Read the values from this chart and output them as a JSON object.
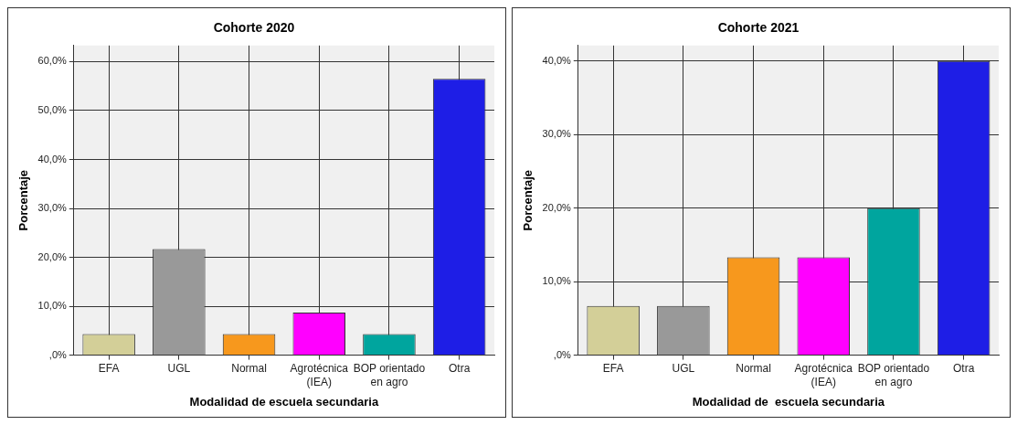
{
  "chart_data": [
    {
      "type": "bar",
      "title": "Cohorte 2020",
      "xlabel": "Modalidad de escuela secundaria",
      "ylabel": "Porcentaje",
      "categories": [
        "EFA",
        "UGL",
        "Normal",
        "Agrotécnica (IEA)",
        "BOP orientado en agro",
        "Otra"
      ],
      "values": [
        4.3,
        21.7,
        4.3,
        8.7,
        4.3,
        56.5
      ],
      "colors": [
        "#d3cf98",
        "#999999",
        "#f7981d",
        "#ff00ff",
        "#00a59e",
        "#1e1ee6"
      ],
      "ylim": [
        0,
        63.3
      ],
      "yticks": [
        {
          "value": 0,
          "label": ",0%"
        },
        {
          "value": 10,
          "label": "10,0%"
        },
        {
          "value": 20,
          "label": "20,0%"
        },
        {
          "value": 30,
          "label": "30,0%"
        },
        {
          "value": 40,
          "label": "40,0%"
        },
        {
          "value": 50,
          "label": "50,0%"
        },
        {
          "value": 60,
          "label": "60,0%"
        }
      ],
      "grid": true
    },
    {
      "type": "bar",
      "title": "Cohorte 2021",
      "xlabel": "Modalidad de  escuela secundaria",
      "ylabel": "Porcentaje",
      "categories": [
        "EFA",
        "UGL",
        "Normal",
        "Agrotécnica (IEA)",
        "BOP orientado en agro",
        "Otra"
      ],
      "values": [
        6.7,
        6.7,
        13.3,
        13.3,
        20,
        40
      ],
      "colors": [
        "#d3cf98",
        "#999999",
        "#f7981d",
        "#ff00ff",
        "#00a59e",
        "#1e1ee6"
      ],
      "ylim": [
        0,
        42.1
      ],
      "yticks": [
        {
          "value": 0,
          "label": ",0%"
        },
        {
          "value": 10,
          "label": "10,0%"
        },
        {
          "value": 20,
          "label": "20,0%"
        },
        {
          "value": 30,
          "label": "30,0%"
        },
        {
          "value": 40,
          "label": "40,0%"
        }
      ],
      "grid": true
    }
  ]
}
